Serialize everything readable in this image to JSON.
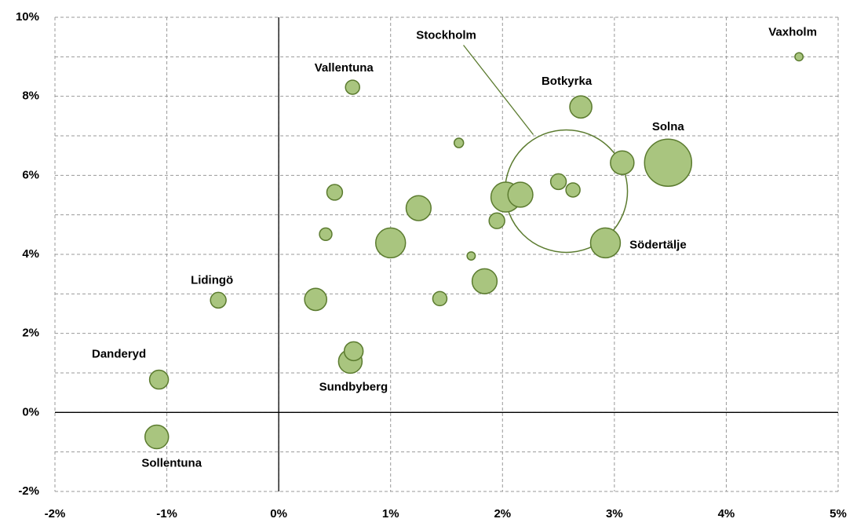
{
  "chart_data": {
    "type": "bubble",
    "x": [
      4.65,
      0.66,
      2.7,
      1.61,
      2.57,
      3.48,
      3.07,
      2.5,
      2.63,
      2.03,
      2.16,
      1.25,
      0.5,
      1.95,
      0.42,
      1.0,
      1.72,
      2.92,
      1.84,
      1.44,
      0.33,
      -0.54,
      0.67,
      0.64,
      -1.07,
      -1.09
    ],
    "values": [
      9.0,
      8.23,
      7.73,
      6.82,
      5.6,
      6.32,
      6.32,
      5.84,
      5.63,
      5.45,
      5.51,
      5.17,
      5.57,
      4.85,
      4.51,
      4.29,
      3.96,
      4.29,
      3.32,
      2.88,
      2.86,
      2.84,
      1.55,
      1.29,
      0.83,
      -0.62
    ],
    "sizes": [
      3,
      9,
      22,
      4,
      676,
      100,
      25,
      11,
      9,
      40,
      28,
      28,
      11,
      11,
      7,
      40,
      3,
      40,
      28,
      9,
      22,
      11,
      16,
      25,
      16,
      25
    ],
    "labels": [
      "Vaxholm",
      "Vallentuna",
      "Botkyrka",
      null,
      "Stockholm",
      "Solna",
      null,
      null,
      null,
      null,
      null,
      null,
      null,
      null,
      null,
      null,
      null,
      "Södertälje",
      null,
      null,
      null,
      "Lidingö",
      null,
      "Sundbyberg",
      "Danderyd",
      "Sollentuna"
    ],
    "outline_only": [
      "Stockholm"
    ],
    "color": "#a9c57f",
    "edge_color": "#5b7b2f",
    "xlim": [
      -2,
      5
    ],
    "ylim": [
      -2,
      10
    ],
    "xticks": [
      {
        "value": -2,
        "label": "-2%"
      },
      {
        "value": -1,
        "label": "-1%"
      },
      {
        "value": 0,
        "label": "0%"
      },
      {
        "value": 1,
        "label": "1%"
      },
      {
        "value": 2,
        "label": "2%"
      },
      {
        "value": 3,
        "label": "3%"
      },
      {
        "value": 4,
        "label": "4%"
      },
      {
        "value": 5,
        "label": "5%"
      }
    ],
    "yticks": [
      {
        "value": -2,
        "label": "-2%"
      },
      {
        "value": 0,
        "label": "0%"
      },
      {
        "value": 2,
        "label": "2%"
      },
      {
        "value": 4,
        "label": "4%"
      },
      {
        "value": 6,
        "label": "6%"
      },
      {
        "value": 8,
        "label": "8%"
      },
      {
        "value": 10,
        "label": "10%"
      }
    ],
    "y_minor_ticks": [
      -1,
      1,
      3,
      5,
      7,
      9
    ],
    "grid": true
  }
}
